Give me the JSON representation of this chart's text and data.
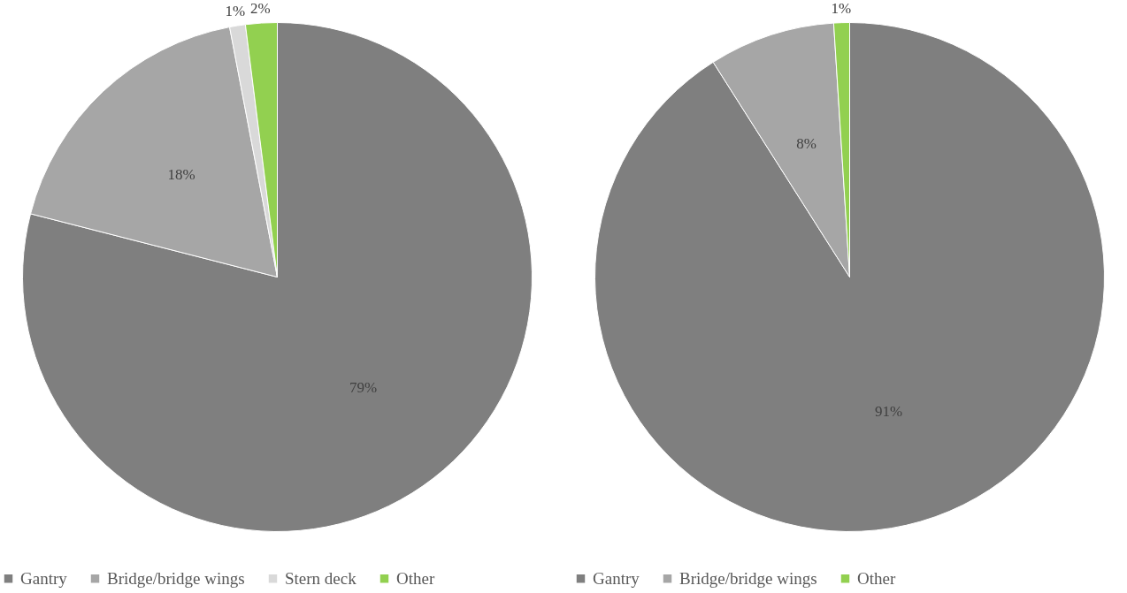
{
  "chart_data": [
    {
      "type": "pie",
      "categories": [
        "Gantry",
        "Bridge/bridge wings",
        "Stern deck",
        "Other"
      ],
      "values": [
        79,
        18,
        1,
        2
      ],
      "colors": [
        "#7f7f7f",
        "#a6a6a6",
        "#d9d9d9",
        "#92d050"
      ],
      "value_labels": [
        "79%",
        "18%",
        "1%",
        "2%"
      ],
      "legend": "bottom"
    },
    {
      "type": "pie",
      "categories": [
        "Gantry",
        "Bridge/bridge wings",
        "Other"
      ],
      "values": [
        91,
        8,
        1
      ],
      "colors": [
        "#7f7f7f",
        "#a6a6a6",
        "#92d050"
      ],
      "value_labels": [
        "91%",
        "8%",
        "1%"
      ],
      "legend": "bottom"
    }
  ]
}
